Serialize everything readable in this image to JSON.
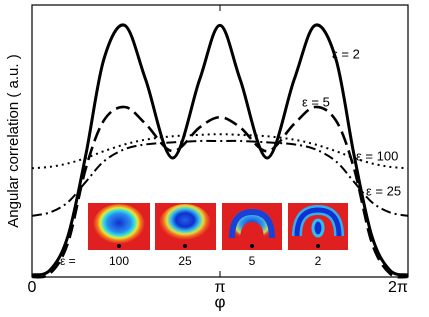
{
  "chart_data": {
    "type": "line",
    "y_label": "Angular correlation ( a.u. )",
    "x_label": "φ",
    "x": [
      0,
      0.3,
      0.6,
      0.9,
      1.2,
      1.55,
      1.9,
      2.35,
      2.8,
      3.14,
      3.48,
      3.93,
      4.38,
      4.73,
      5.08,
      5.38,
      5.68,
      5.98,
      6.28
    ],
    "xlim": [
      0,
      6.2832
    ],
    "ylim": [
      0,
      4
    ],
    "xticks": [
      0,
      {
        "value": 3.1416,
        "label": "π"
      },
      {
        "value": 6.2832,
        "label": "2π"
      }
    ],
    "series": [
      {
        "name": "ε = 2",
        "color": "#000000",
        "dash": "solid",
        "values": [
          0.03,
          0.1,
          0.6,
          1.8,
          3.2,
          3.7,
          2.9,
          1.75,
          2.9,
          3.7,
          2.9,
          1.75,
          2.9,
          3.7,
          3.2,
          1.8,
          0.6,
          0.1,
          0.03
        ]
      },
      {
        "name": "ε = 5",
        "color": "#000000",
        "dash": "dashed",
        "values": [
          0.0,
          0.05,
          0.5,
          1.6,
          2.3,
          2.5,
          2.25,
          1.85,
          2.2,
          2.35,
          2.2,
          1.85,
          2.25,
          2.5,
          2.3,
          1.6,
          0.5,
          0.05,
          0.0
        ]
      },
      {
        "name": "ε = 100",
        "color": "#000000",
        "dash": "dotted",
        "values": [
          1.6,
          1.62,
          1.67,
          1.75,
          1.85,
          1.95,
          2.02,
          2.07,
          2.09,
          2.1,
          2.09,
          2.07,
          2.02,
          1.95,
          1.85,
          1.75,
          1.67,
          1.62,
          1.6
        ]
      },
      {
        "name": "ε = 25",
        "color": "#000000",
        "dash": "dashdot",
        "values": [
          0.9,
          0.95,
          1.1,
          1.4,
          1.7,
          1.88,
          1.95,
          1.98,
          2.0,
          2.0,
          2.0,
          1.98,
          1.95,
          1.88,
          1.7,
          1.4,
          1.1,
          0.95,
          0.9
        ]
      }
    ],
    "inset": {
      "prefix": "ε =",
      "labels": [
        "100",
        "25",
        "5",
        "2"
      ]
    }
  }
}
